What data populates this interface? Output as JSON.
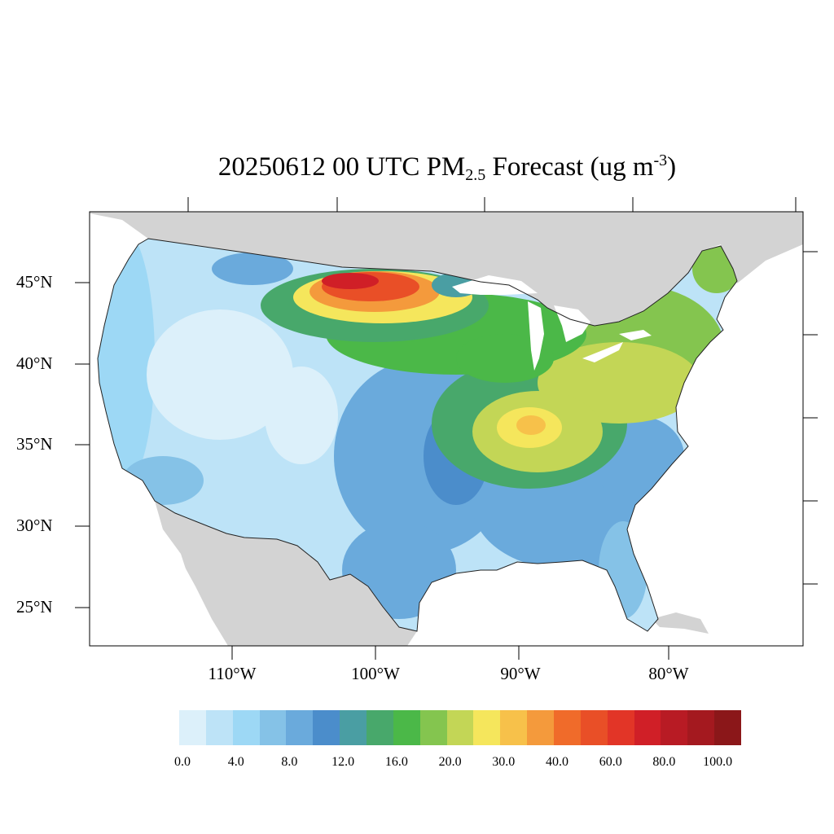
{
  "title": {
    "main": "20250612 00 UTC PM",
    "subscript": "2.5",
    "tail": " Forecast (ug m",
    "superscript": "-3",
    "close": ")"
  },
  "axes": {
    "lat_ticks": [
      "45°N",
      "40°N",
      "35°N",
      "30°N",
      "25°N"
    ],
    "lon_ticks": [
      "110°W",
      "100°W",
      "90°W",
      "80°W"
    ]
  },
  "colorbar": {
    "colors": [
      "#dcf0fa",
      "#bde3f7",
      "#9dd8f5",
      "#85c2e7",
      "#6aaadc",
      "#4b8dcb",
      "#4a9ea3",
      "#48a86b",
      "#4bb848",
      "#84c54f",
      "#c3d656",
      "#f5e65c",
      "#f7c14a",
      "#f49a3c",
      "#f06b2a",
      "#e94f27",
      "#e23527",
      "#d01f27",
      "#b81b24",
      "#a4191f",
      "#8b1719"
    ],
    "labels": [
      "0.0",
      "4.0",
      "8.0",
      "12.0",
      "16.0",
      "20.0",
      "30.0",
      "40.0",
      "60.0",
      "80.0",
      "100.0"
    ]
  },
  "map": {
    "land_outside_us_color": "#d3d3d3",
    "water_color": "#ffffff",
    "background_value_color": "#bde3f7"
  }
}
